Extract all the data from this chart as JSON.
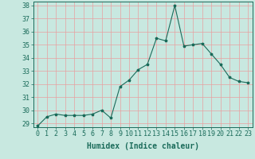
{
  "x": [
    0,
    1,
    2,
    3,
    4,
    5,
    6,
    7,
    8,
    9,
    10,
    11,
    12,
    13,
    14,
    15,
    16,
    17,
    18,
    19,
    20,
    21,
    22,
    23
  ],
  "y": [
    28.8,
    29.5,
    29.7,
    29.6,
    29.6,
    29.6,
    29.7,
    30.0,
    29.4,
    31.8,
    32.3,
    33.1,
    33.5,
    35.5,
    35.3,
    38.0,
    34.9,
    35.0,
    35.1,
    34.3,
    33.5,
    32.5,
    32.2,
    32.1
  ],
  "line_color": "#1a6b5a",
  "marker": "*",
  "marker_size": 2.5,
  "bg_color": "#c8e8e0",
  "grid_color": "#e8a0a0",
  "xlabel": "Humidex (Indice chaleur)",
  "ylim_min": 28.7,
  "ylim_max": 38.3,
  "yticks": [
    29,
    30,
    31,
    32,
    33,
    34,
    35,
    36,
    37,
    38
  ],
  "xticks": [
    0,
    1,
    2,
    3,
    4,
    5,
    6,
    7,
    8,
    9,
    10,
    11,
    12,
    13,
    14,
    15,
    16,
    17,
    18,
    19,
    20,
    21,
    22,
    23
  ],
  "xlabel_fontsize": 7,
  "tick_fontsize": 6,
  "tick_color": "#1a6b5a",
  "spine_color": "#1a6b5a",
  "linewidth": 0.8
}
